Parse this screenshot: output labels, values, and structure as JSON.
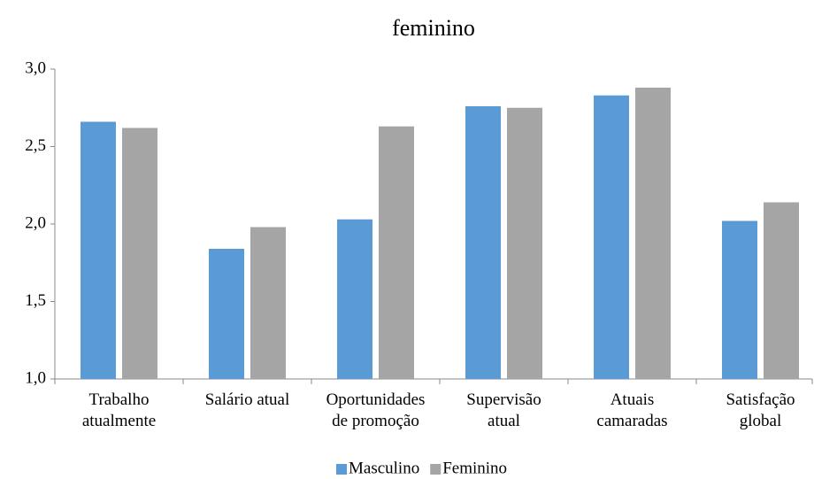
{
  "chart_data": {
    "type": "bar",
    "title": "feminino",
    "categories": [
      "Trabalho\natualmente",
      "Salário atual",
      "Oportunidades\nde promoção",
      "Supervisão\natual",
      "Atuais\ncamaradas",
      "Satisfação\nglobal"
    ],
    "series": [
      {
        "name": "Masculino",
        "color": "#5b9bd5",
        "values": [
          2.66,
          1.84,
          2.03,
          2.76,
          2.83,
          2.02
        ]
      },
      {
        "name": "Feminino",
        "color": "#a5a5a5",
        "values": [
          2.62,
          1.98,
          2.63,
          2.75,
          2.88,
          2.14
        ]
      }
    ],
    "ylim": [
      1,
      3
    ],
    "yticks": [
      {
        "value": 1,
        "label": "1,0"
      },
      {
        "value": 1.5,
        "label": "1,5"
      },
      {
        "value": 2,
        "label": "2,0"
      },
      {
        "value": 2.5,
        "label": "2,5"
      },
      {
        "value": 3,
        "label": "3,0"
      }
    ],
    "legend": "bottom"
  }
}
